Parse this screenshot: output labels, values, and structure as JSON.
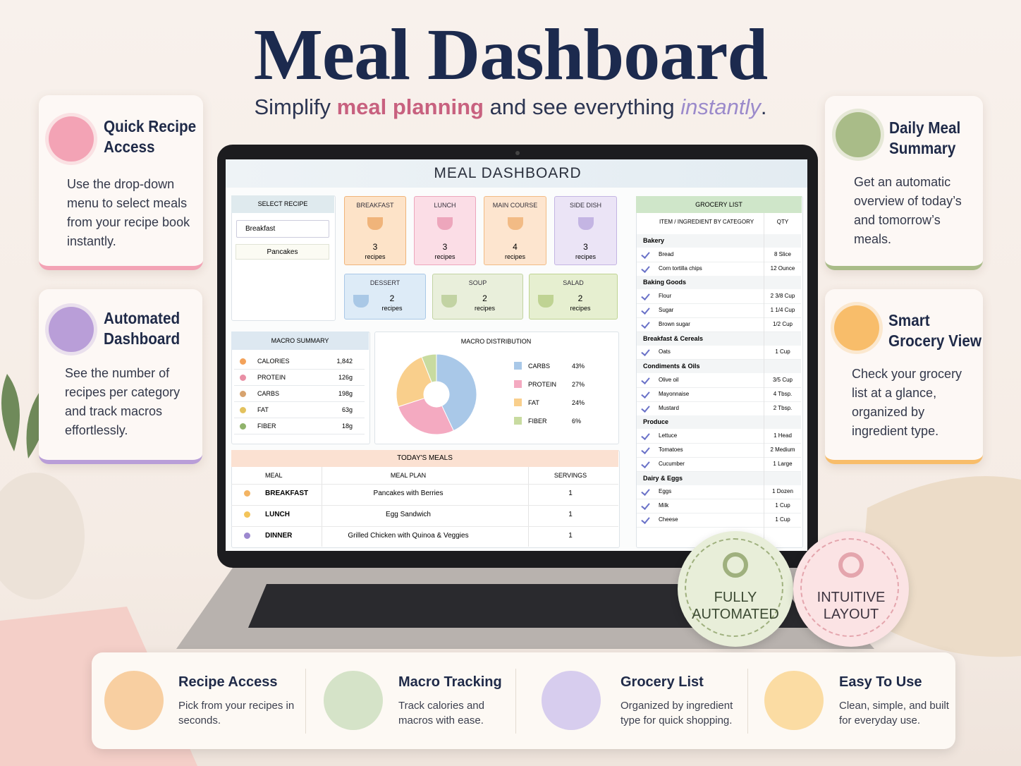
{
  "header": {
    "title": "Meal Dashboard",
    "subtitle_parts": [
      "Simplify ",
      "meal planning",
      " and see everything ",
      "instantly",
      "."
    ]
  },
  "feature_cards": [
    {
      "title": "Quick Recipe Access",
      "text": "Use the drop-down menu to select meals from your recipe book instantly."
    },
    {
      "title": "Automated Dashboard",
      "text": "See the number of recipes per category and track macros effortlessly."
    },
    {
      "title": "Daily Meal Summary",
      "text": "Get an automatic overview of today’s and tomorrow’s meals."
    },
    {
      "title": "Smart Grocery View",
      "text": "Check your grocery list at a glance, organized by ingredient type."
    }
  ],
  "badges": [
    "FULLY AUTOMATED",
    "INTUITIVE LAYOUT"
  ],
  "bottom_features": [
    {
      "title": "Recipe Access",
      "text": "Pick from your recipes in seconds."
    },
    {
      "title": "Macro Tracking",
      "text": "Track calories and macros with ease."
    },
    {
      "title": "Grocery List",
      "text": "Organized by ingredient type for quick shopping."
    },
    {
      "title": "Easy To Use",
      "text": "Clean, simple, and built for everyday use."
    }
  ],
  "dashboard": {
    "title": "MEAL DASHBOARD",
    "select_recipe": {
      "header": "SELECT RECIPE",
      "dropdown": "Breakfast",
      "selected": "Pancakes"
    },
    "categories": [
      {
        "name": "BREAKFAST",
        "count": 3,
        "unit": "recipes"
      },
      {
        "name": "LUNCH",
        "count": 3,
        "unit": "recipes"
      },
      {
        "name": "MAIN COURSE",
        "count": 4,
        "unit": "recipes"
      },
      {
        "name": "SIDE DISH",
        "count": 3,
        "unit": "recipes"
      },
      {
        "name": "DESSERT",
        "count": 2,
        "unit": "recipes"
      },
      {
        "name": "SOUP",
        "count": 2,
        "unit": "recipes"
      },
      {
        "name": "SALAD",
        "count": 2,
        "unit": "recipes"
      }
    ],
    "macro_summary": {
      "header": "MACRO SUMMARY",
      "rows": [
        [
          "CALORIES",
          "1,842"
        ],
        [
          "PROTEIN",
          "126g"
        ],
        [
          "CARBS",
          "198g"
        ],
        [
          "FAT",
          "63g"
        ],
        [
          "FIBER",
          "18g"
        ]
      ]
    },
    "todays_meals": {
      "header": "TODAY'S MEALS",
      "columns": [
        "MEAL",
        "MEAL PLAN",
        "SERVINGS"
      ],
      "rows": [
        [
          "BREAKFAST",
          "Pancakes with Berries",
          1
        ],
        [
          "LUNCH",
          "Egg Sandwich",
          1
        ],
        [
          "DINNER",
          "Grilled Chicken with Quinoa & Veggies",
          1
        ]
      ]
    },
    "grocery_list": {
      "header": "GROCERY LIST",
      "columns": [
        "ITEM / INGREDIENT BY CATEGORY",
        "QTY"
      ],
      "groups": [
        {
          "name": "Bakery",
          "items": [
            [
              "Bread",
              "8 Slice"
            ],
            [
              "Corn tortilla chips",
              "12 Ounce"
            ]
          ]
        },
        {
          "name": "Baking Goods",
          "items": [
            [
              "Flour",
              "2 3/8 Cup"
            ],
            [
              "Sugar",
              "1 1/4 Cup"
            ],
            [
              "Brown sugar",
              "1/2 Cup"
            ]
          ]
        },
        {
          "name": "Breakfast & Cereals",
          "items": [
            [
              "Oats",
              "1 Cup"
            ]
          ]
        },
        {
          "name": "Condiments & Oils",
          "items": [
            [
              "Olive oil",
              "3/5 Cup"
            ],
            [
              "Mayonnaise",
              "4 Tbsp."
            ],
            [
              "Mustard",
              "2 Tbsp."
            ]
          ]
        },
        {
          "name": "Produce",
          "items": [
            [
              "Lettuce",
              "1 Head"
            ],
            [
              "Tomatoes",
              "2 Medium"
            ],
            [
              "Cucumber",
              "1 Large"
            ]
          ]
        },
        {
          "name": "Dairy & Eggs",
          "items": [
            [
              "Eggs",
              "1 Dozen"
            ],
            [
              "Milk",
              "1 Cup"
            ],
            [
              "Cheese",
              "1 Cup"
            ]
          ]
        }
      ]
    }
  },
  "chart_data": {
    "type": "pie",
    "title": "MACRO DISTRIBUTION",
    "categories": [
      "CARBS",
      "PROTEIN",
      "FAT",
      "FIBER"
    ],
    "values": [
      43,
      27,
      24,
      6
    ],
    "value_labels": [
      "43%",
      "27%",
      "24%",
      "6%"
    ],
    "colors": [
      "#a9c8e8",
      "#f4aac1",
      "#f9cf8c",
      "#c8dba0"
    ]
  }
}
